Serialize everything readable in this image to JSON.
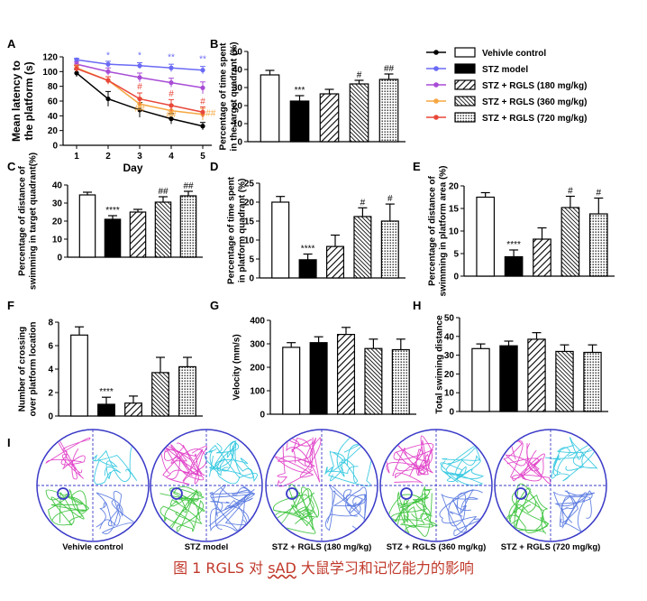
{
  "caption": {
    "before": "图 1 RGLS 对 ",
    "underlined": "sAD",
    "after": " 大鼠学习和记忆能力的影响"
  },
  "legend": [
    {
      "label": "Vehivle control",
      "pattern": "white"
    },
    {
      "label": "STZ model",
      "pattern": "black"
    },
    {
      "label": "STZ + RGLS (180 mg/kg)",
      "pattern": "diag",
      "line_color": "#a84cd6"
    },
    {
      "label": "STZ + RGLS (360 mg/kg)",
      "pattern": "dense",
      "line_color": "#f5a742"
    },
    {
      "label": "STZ + RGLS (720 mg/kg)",
      "pattern": "dots",
      "line_color": "#e8473a"
    }
  ],
  "colors": {
    "control": "#000000",
    "stz": "#6a6af5",
    "d180": "#a84cd6",
    "d360": "#f5a742",
    "d720": "#e8473a"
  },
  "chart_data": [
    {
      "panel": "A",
      "type": "line",
      "xlabel": "Day",
      "ylabel": "Mean latency to\nthe platform (s)",
      "x": [
        1,
        2,
        3,
        4,
        5
      ],
      "xticks": [
        "1",
        "2",
        "3",
        "4",
        "5"
      ],
      "ylim": [
        0,
        120
      ],
      "yticks": [
        0,
        20,
        40,
        60,
        80,
        100,
        120
      ],
      "series": [
        {
          "name": "Vehivle control",
          "values": [
            98,
            63,
            48,
            36,
            26
          ],
          "err": [
            5,
            10,
            10,
            7,
            5
          ],
          "color": "#000000"
        },
        {
          "name": "STZ model",
          "values": [
            116,
            110,
            108,
            105,
            102
          ],
          "err": [
            2,
            4,
            4,
            5,
            5
          ],
          "color": "#6a6af5"
        },
        {
          "name": "STZ + RGLS (180 mg/kg)",
          "values": [
            110,
            100,
            92,
            85,
            78
          ],
          "err": [
            3,
            5,
            6,
            6,
            8
          ],
          "color": "#a84cd6"
        },
        {
          "name": "STZ + RGLS (360 mg/kg)",
          "values": [
            105,
            88,
            56,
            47,
            42
          ],
          "err": [
            4,
            5,
            8,
            8,
            8
          ],
          "color": "#f5a742"
        },
        {
          "name": "STZ + RGLS (720 mg/kg)",
          "values": [
            104,
            88,
            63,
            54,
            45
          ],
          "err": [
            4,
            5,
            8,
            8,
            7
          ],
          "color": "#e8473a"
        }
      ],
      "annotations": [
        {
          "text": "*",
          "x": 2,
          "y": 118,
          "color": "#6a6af5"
        },
        {
          "text": "*",
          "x": 3,
          "y": 118,
          "color": "#6a6af5"
        },
        {
          "text": "**",
          "x": 4,
          "y": 116,
          "color": "#6a6af5"
        },
        {
          "text": "**",
          "x": 5,
          "y": 113,
          "color": "#6a6af5"
        },
        {
          "text": "#",
          "x": 3,
          "y": 76,
          "color": "#e8473a"
        },
        {
          "text": "#",
          "x": 4,
          "y": 66,
          "color": "#e8473a"
        },
        {
          "text": "#",
          "x": 5,
          "y": 56,
          "color": "#e8473a"
        },
        {
          "text": "##",
          "x": 3,
          "y": 46,
          "color": "#f5a742"
        },
        {
          "text": "##",
          "x": 4,
          "y": 38,
          "color": "#f5a742"
        },
        {
          "text": "##",
          "x": 5.25,
          "y": 40,
          "color": "#f5a742"
        }
      ]
    },
    {
      "panel": "B",
      "type": "bar",
      "ylabel": "Percentage of time spent\nin the target quadrant (%)",
      "ylim": [
        0,
        50
      ],
      "yticks": [
        0,
        10,
        20,
        30,
        40,
        50
      ],
      "values": [
        37,
        22.5,
        26.5,
        32,
        34.5
      ],
      "err": [
        2.5,
        3,
        2.5,
        2,
        3
      ],
      "marks": [
        "",
        "***",
        "",
        "#",
        "##"
      ]
    },
    {
      "panel": "C",
      "type": "bar",
      "ylabel": "Percentage of distance of\nswimming in target quadrant(%)",
      "ylim": [
        0,
        40
      ],
      "yticks": [
        0,
        10,
        20,
        30,
        40
      ],
      "values": [
        34.5,
        21,
        25,
        30.5,
        34
      ],
      "err": [
        1.5,
        2,
        1.5,
        3,
        2.5
      ],
      "marks": [
        "",
        "****",
        "",
        "##",
        "##"
      ]
    },
    {
      "panel": "D",
      "type": "bar",
      "ylabel": "Percentage of time spent\nin platform quadrant (%)",
      "ylim": [
        0,
        25
      ],
      "yticks": [
        0,
        5,
        10,
        15,
        20,
        25
      ],
      "values": [
        20,
        4.8,
        8.3,
        16.2,
        15
      ],
      "err": [
        1.5,
        1.5,
        3,
        2.3,
        4.5
      ],
      "marks": [
        "",
        "****",
        "",
        "#",
        "#"
      ]
    },
    {
      "panel": "E",
      "type": "bar",
      "ylabel": "Percentage of distance of\nswimming in platform area (%)",
      "ylim": [
        0,
        20
      ],
      "yticks": [
        0,
        5,
        10,
        15,
        20
      ],
      "values": [
        17.5,
        4.3,
        8.2,
        15.2,
        13.8
      ],
      "err": [
        1,
        1.5,
        2.5,
        2.5,
        3.5
      ],
      "marks": [
        "",
        "****",
        "",
        "#",
        "#"
      ]
    },
    {
      "panel": "F",
      "type": "bar",
      "ylabel": "Number of crossing\nover platform location",
      "ylim": [
        0,
        8
      ],
      "yticks": [
        0,
        2,
        4,
        6,
        8
      ],
      "values": [
        6.9,
        1,
        1.1,
        3.7,
        4.2
      ],
      "err": [
        0.7,
        0.6,
        0.6,
        1.3,
        0.8
      ],
      "marks": [
        "",
        "****",
        "",
        "",
        ""
      ]
    },
    {
      "panel": "G",
      "type": "bar",
      "ylabel": "Velocity (mm/s)",
      "ylim": [
        0,
        400
      ],
      "yticks": [
        0,
        100,
        200,
        300,
        400
      ],
      "values": [
        285,
        305,
        340,
        280,
        275
      ],
      "err": [
        20,
        25,
        30,
        40,
        45
      ],
      "marks": [
        "",
        "",
        "",
        "",
        ""
      ]
    },
    {
      "panel": "H",
      "type": "bar",
      "ylabel": "Total swiming distance",
      "ylim": [
        0,
        50
      ],
      "yticks": [
        0,
        10,
        20,
        30,
        40,
        50
      ],
      "values": [
        33.5,
        35,
        38.5,
        32,
        31.5
      ],
      "err": [
        2.5,
        2.5,
        3.5,
        3.5,
        4
      ],
      "marks": [
        "",
        "",
        "",
        "",
        ""
      ]
    }
  ],
  "trace_panel": {
    "label": "I",
    "captions": [
      "Vehivle control",
      "STZ model",
      "STZ + RGLS (180 mg/kg)",
      "STZ + RGLS (360 mg/kg)",
      "STZ + RGLS (720 mg/kg)"
    ],
    "quadrant_colors": [
      "#e040c8",
      "#35c8e0",
      "#3fc43f",
      "#5a7ae0"
    ],
    "pool_color": "#3a3ac8"
  }
}
